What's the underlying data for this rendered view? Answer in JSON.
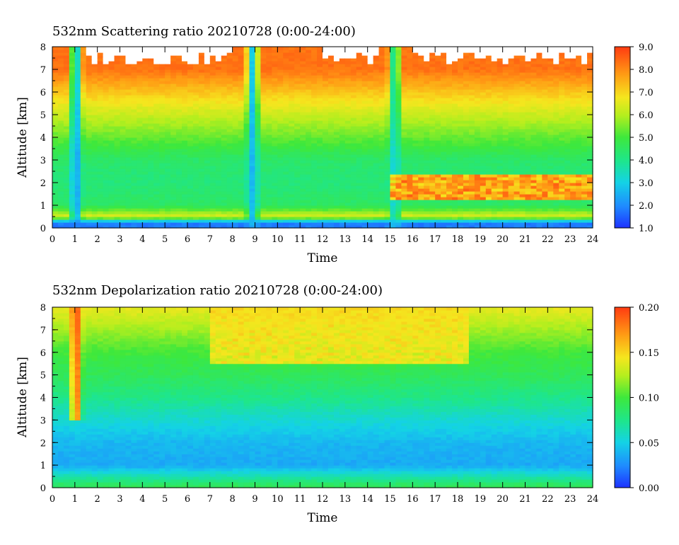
{
  "chart_data": [
    {
      "type": "heatmap",
      "title": "532nm Scattering ratio  20210728 (0:00-24:00)",
      "xlabel": "Time",
      "ylabel": "Altitude [km]",
      "xlim": [
        0,
        24
      ],
      "ylim": [
        0,
        8
      ],
      "x_ticks": [
        "0",
        "1",
        "2",
        "3",
        "4",
        "5",
        "6",
        "7",
        "8",
        "9",
        "10",
        "11",
        "12",
        "13",
        "14",
        "15",
        "16",
        "17",
        "18",
        "19",
        "20",
        "21",
        "22",
        "23",
        "24"
      ],
      "y_ticks": [
        "0",
        "1",
        "2",
        "3",
        "4",
        "5",
        "6",
        "7",
        "8"
      ],
      "colorbar": {
        "min": 1.0,
        "max": 9.0,
        "ticks": [
          "1.0",
          "2.0",
          "3.0",
          "4.0",
          "5.0",
          "6.0",
          "7.0",
          "8.0",
          "9.0"
        ]
      },
      "colors": {
        "low": "#1e32ff",
        "high": "#ff3b12",
        "saturated": "#ffffff"
      },
      "profile_by_altitude": [
        {
          "altitude_km": 0.25,
          "value": 1.8
        },
        {
          "altitude_km": 0.5,
          "value": 6.5
        },
        {
          "altitude_km": 1.0,
          "value": 4.5
        },
        {
          "altitude_km": 2.0,
          "value": 4.2
        },
        {
          "altitude_km": 3.0,
          "value": 4.4
        },
        {
          "altitude_km": 4.0,
          "value": 5.3
        },
        {
          "altitude_km": 5.0,
          "value": 6.2
        },
        {
          "altitude_km": 6.0,
          "value": 7.2
        },
        {
          "altitude_km": 7.0,
          "value": 8.3
        }
      ],
      "features": [
        {
          "time": 1.05,
          "note": "low ratio column",
          "min_value": 2.0
        },
        {
          "time": 8.9,
          "note": "low ratio column",
          "min_value": 2.5
        },
        {
          "time": 15.2,
          "note": "low ratio column",
          "min_value": 3.0
        },
        {
          "time_range": [
            15,
            24
          ],
          "altitude_km": [
            1.2,
            2.4
          ],
          "note": "high ratio layer",
          "value": 8.5
        }
      ]
    },
    {
      "type": "heatmap",
      "title": "532nm Depolarization ratio  20210728 (0:00-24:00)",
      "xlabel": "Time",
      "ylabel": "Altitude [km]",
      "xlim": [
        0,
        24
      ],
      "ylim": [
        0,
        8
      ],
      "x_ticks": [
        "0",
        "1",
        "2",
        "3",
        "4",
        "5",
        "6",
        "7",
        "8",
        "9",
        "10",
        "11",
        "12",
        "13",
        "14",
        "15",
        "16",
        "17",
        "18",
        "19",
        "20",
        "21",
        "22",
        "23",
        "24"
      ],
      "y_ticks": [
        "0",
        "1",
        "2",
        "3",
        "4",
        "5",
        "6",
        "7",
        "8"
      ],
      "colorbar": {
        "min": 0.0,
        "max": 0.2,
        "ticks": [
          "0.00",
          "0.05",
          "0.10",
          "0.15",
          "0.20"
        ]
      },
      "colors": {
        "low": "#1e32ff",
        "high": "#ff3b12"
      },
      "profile_by_altitude": [
        {
          "altitude_km": 0.1,
          "value": 0.09
        },
        {
          "altitude_km": 1.0,
          "value": 0.035
        },
        {
          "altitude_km": 2.0,
          "value": 0.04
        },
        {
          "altitude_km": 3.0,
          "value": 0.055
        },
        {
          "altitude_km": 4.0,
          "value": 0.075
        },
        {
          "altitude_km": 5.0,
          "value": 0.09
        },
        {
          "altitude_km": 6.0,
          "value": 0.1
        },
        {
          "altitude_km": 7.0,
          "value": 0.12
        },
        {
          "altitude_km": 8.0,
          "value": 0.14
        }
      ],
      "features": [
        {
          "time": 1.05,
          "altitude_km": [
            3,
            8
          ],
          "note": "high depolarization column",
          "value": 0.2
        },
        {
          "time_range": [
            7,
            18.5
          ],
          "altitude_km": [
            5.5,
            8
          ],
          "note": "patchy high depolarization",
          "value": 0.15
        }
      ]
    }
  ]
}
